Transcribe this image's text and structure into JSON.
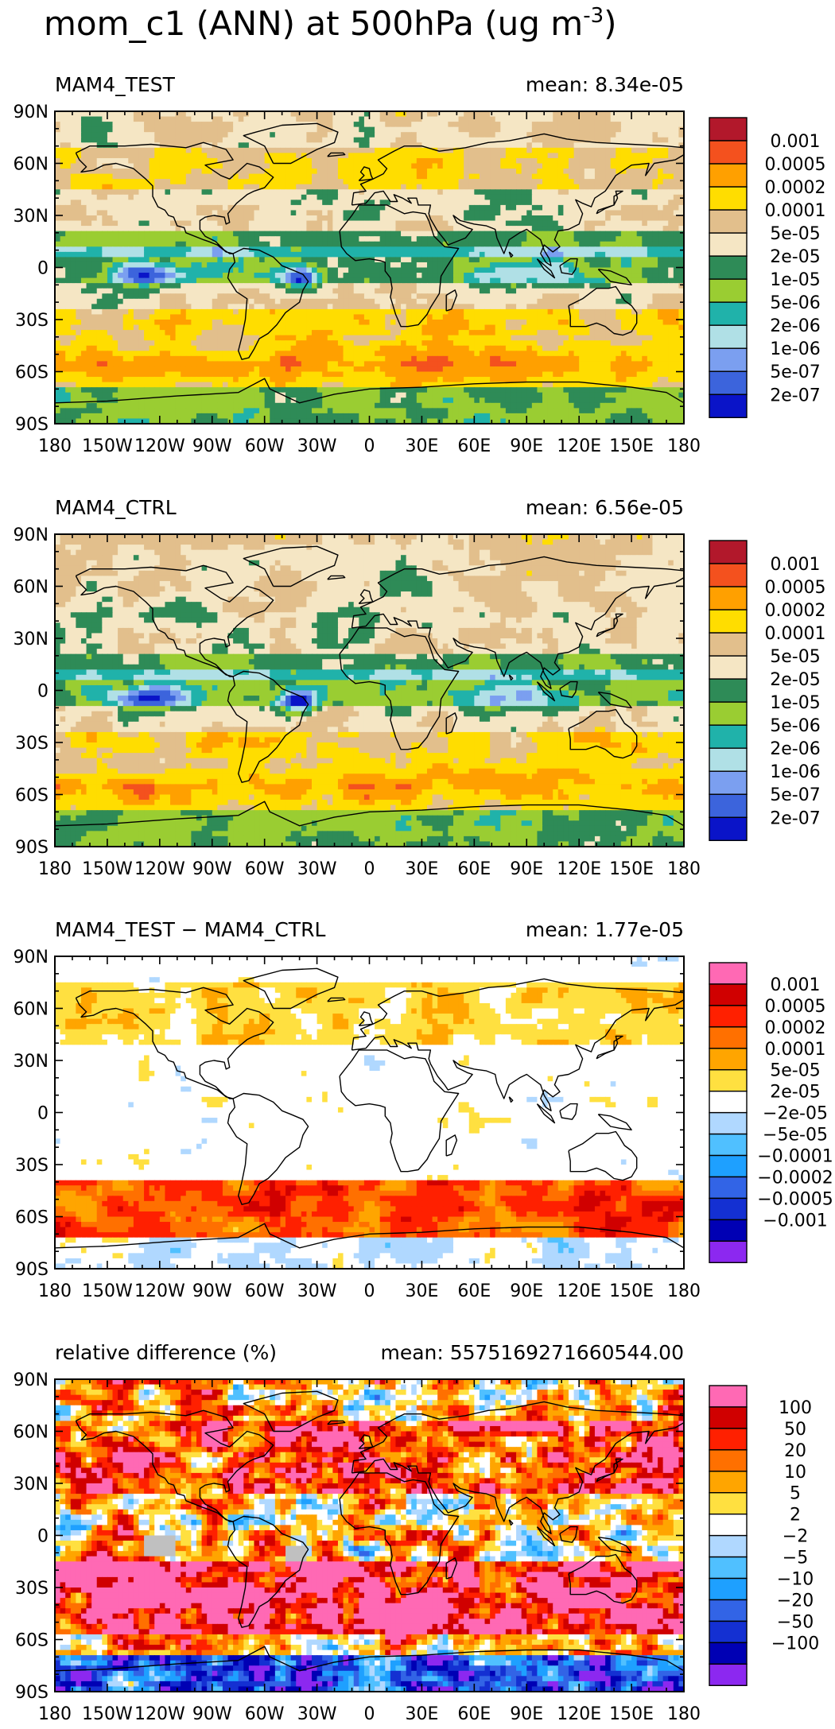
{
  "figure": {
    "title": "mom_c1 (ANN) at 500hPa (ug m",
    "title_superscript": "-3",
    "title_close": ")"
  },
  "chart_data": [
    {
      "type": "heatmap",
      "title": "MAM4_TEST",
      "stat_label": "mean: 8.34e-05",
      "xlabels": [
        "180",
        "150W",
        "120W",
        "90W",
        "60W",
        "30W",
        "0",
        "30E",
        "60E",
        "90E",
        "120E",
        "150E",
        "180"
      ],
      "ylabels": [
        "90N",
        "60N",
        "30N",
        "0",
        "30S",
        "60S",
        "90S"
      ],
      "xlim": [
        -180,
        180
      ],
      "ylim": [
        -90,
        90
      ],
      "colorbar": {
        "colors": [
          "#b2182b",
          "#f4511e",
          "#ffa000",
          "#ffdd00",
          "#e2bf8c",
          "#f5e6c4",
          "#2e8b57",
          "#9acd32",
          "#20b2aa",
          "#b0e0e6",
          "#7b9ff0",
          "#3c64dc",
          "#0a14c8"
        ],
        "labels": [
          "0.001",
          "0.0005",
          "0.0002",
          "0.0001",
          "5e-05",
          "2e-05",
          "1e-05",
          "5e-06",
          "2e-06",
          "1e-06",
          "5e-07",
          "2e-07"
        ]
      }
    },
    {
      "type": "heatmap",
      "title": "MAM4_CTRL",
      "stat_label": "mean: 6.56e-05",
      "xlabels": [
        "180",
        "150W",
        "120W",
        "90W",
        "60W",
        "30W",
        "0",
        "30E",
        "60E",
        "90E",
        "120E",
        "150E",
        "180"
      ],
      "ylabels": [
        "90N",
        "60N",
        "30N",
        "0",
        "30S",
        "60S",
        "90S"
      ],
      "xlim": [
        -180,
        180
      ],
      "ylim": [
        -90,
        90
      ],
      "colorbar": {
        "colors": [
          "#b2182b",
          "#f4511e",
          "#ffa000",
          "#ffdd00",
          "#e2bf8c",
          "#f5e6c4",
          "#2e8b57",
          "#9acd32",
          "#20b2aa",
          "#b0e0e6",
          "#7b9ff0",
          "#3c64dc",
          "#0a14c8"
        ],
        "labels": [
          "0.001",
          "0.0005",
          "0.0002",
          "0.0001",
          "5e-05",
          "2e-05",
          "1e-05",
          "5e-06",
          "2e-06",
          "1e-06",
          "5e-07",
          "2e-07"
        ]
      }
    },
    {
      "type": "heatmap",
      "title": "MAM4_TEST − MAM4_CTRL",
      "stat_label": "mean: 1.77e-05",
      "xlabels": [
        "180",
        "150W",
        "120W",
        "90W",
        "60W",
        "30W",
        "0",
        "30E",
        "60E",
        "90E",
        "120E",
        "150E",
        "180"
      ],
      "ylabels": [
        "90N",
        "60N",
        "30N",
        "0",
        "30S",
        "60S",
        "90S"
      ],
      "xlim": [
        -180,
        180
      ],
      "ylim": [
        -90,
        90
      ],
      "colorbar": {
        "colors": [
          "#ff69b4",
          "#d00000",
          "#ff2000",
          "#ff7000",
          "#ffa500",
          "#ffe040",
          "#ffffff",
          "#b0d8ff",
          "#50c0ff",
          "#1ea0ff",
          "#3264e6",
          "#1430d2",
          "#0000b4",
          "#8c28f0"
        ],
        "labels": [
          "0.001",
          "0.0005",
          "0.0002",
          "0.0001",
          "5e-05",
          "2e-05",
          "−2e-05",
          "−5e-05",
          "−0.0001",
          "−0.0002",
          "−0.0005",
          "−0.001"
        ]
      }
    },
    {
      "type": "heatmap",
      "title": "relative difference (%)",
      "stat_label": "mean: 5575169271660544.00",
      "xlabels": [
        "180",
        "150W",
        "120W",
        "90W",
        "60W",
        "30W",
        "0",
        "30E",
        "60E",
        "90E",
        "120E",
        "150E",
        "180"
      ],
      "ylabels": [
        "90N",
        "60N",
        "30N",
        "0",
        "30S",
        "60S",
        "90S"
      ],
      "xlim": [
        -180,
        180
      ],
      "ylim": [
        -90,
        90
      ],
      "colorbar": {
        "colors": [
          "#ff69b4",
          "#d00000",
          "#ff2000",
          "#ff7000",
          "#ffa500",
          "#ffe040",
          "#ffffff",
          "#b0d8ff",
          "#50c0ff",
          "#1ea0ff",
          "#3264e6",
          "#1430d2",
          "#0000b4",
          "#8c28f0"
        ],
        "labels": [
          "100",
          "50",
          "20",
          "10",
          "5",
          "2",
          "−2",
          "−5",
          "−10",
          "−20",
          "−50",
          "−100"
        ]
      }
    }
  ]
}
